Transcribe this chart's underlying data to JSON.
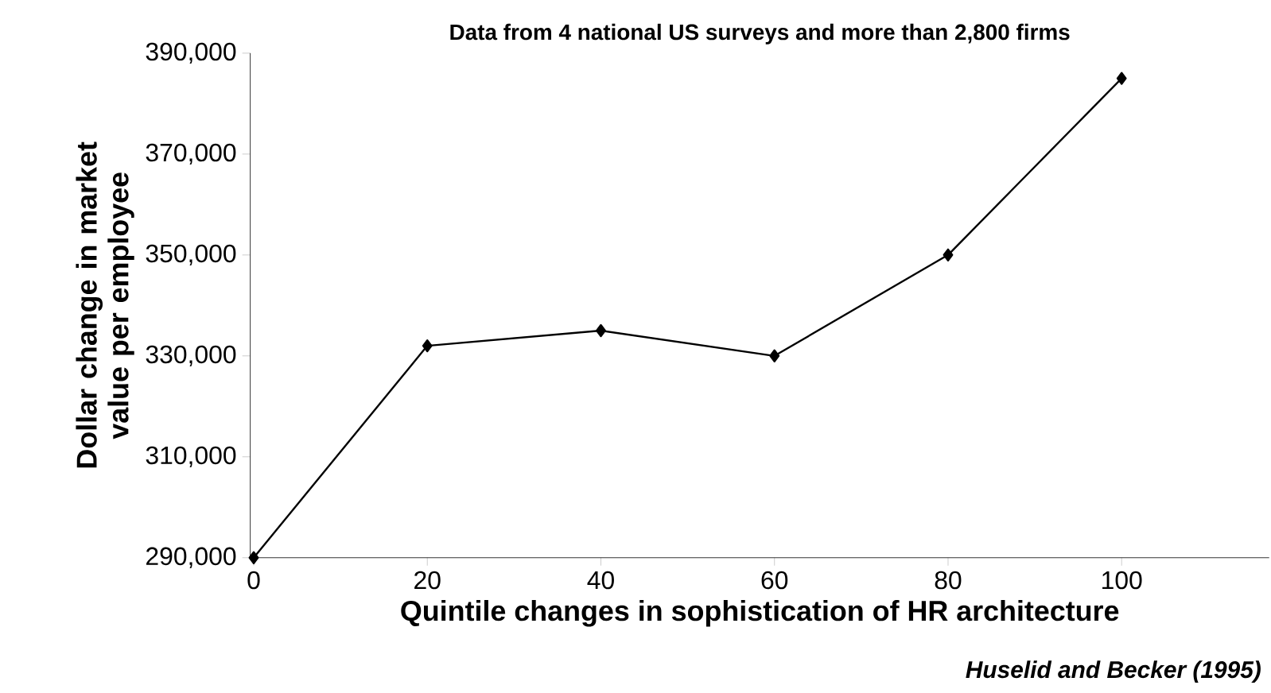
{
  "chart_data": {
    "type": "line",
    "title": "Data from 4 national US surveys and more than 2,800 firms",
    "xlabel": "Quintile changes in sophistication of HR architecture",
    "ylabel": "Dollar change in market value per employee",
    "annotations": [
      "Huselid and Becker (1995)"
    ],
    "categories": [
      "0",
      "20",
      "40",
      "60",
      "80",
      "100"
    ],
    "series": [
      {
        "color": "#000000",
        "values": [
          290000,
          332000,
          335000,
          330000,
          350000,
          385000
        ]
      }
    ],
    "ylim": [
      290000,
      390000
    ],
    "yticks": [
      {
        "value": 290000,
        "label": "290,000"
      },
      {
        "value": 310000,
        "label": "310,000"
      },
      {
        "value": 330000,
        "label": "330,000"
      },
      {
        "value": 350000,
        "label": "350,000"
      },
      {
        "value": 370000,
        "label": "370,000"
      },
      {
        "value": 390000,
        "label": "390,000"
      }
    ],
    "grid": false,
    "marker": "diamond",
    "line_style": "solid"
  }
}
